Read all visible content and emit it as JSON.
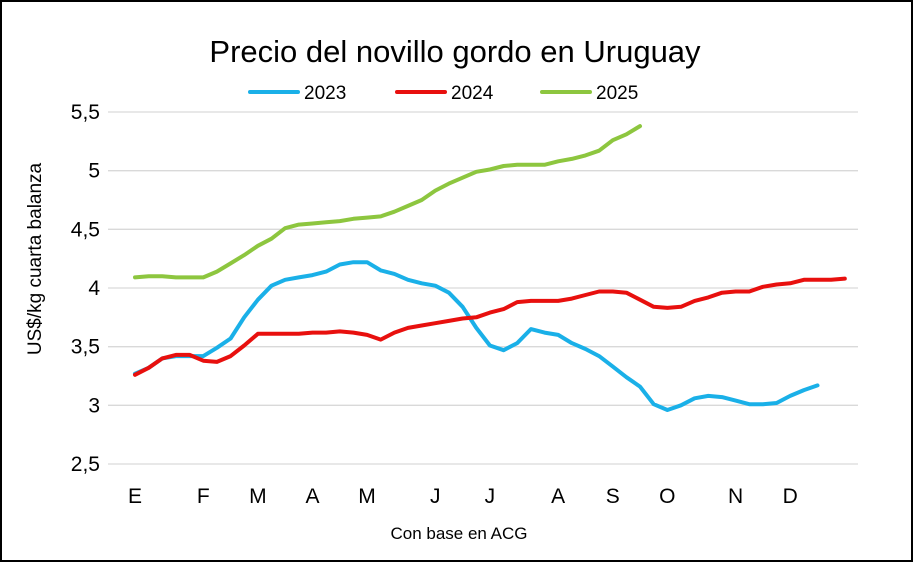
{
  "chart_data": {
    "type": "line",
    "title": "Precio del novillo gordo en Uruguay",
    "xlabel": "Con base en ACG",
    "ylabel": "US$/kg cuarta balanza",
    "ylim": [
      2.5,
      5.5
    ],
    "yticks": [
      {
        "value": 2.5,
        "label": "2,5"
      },
      {
        "value": 3,
        "label": "3"
      },
      {
        "value": 3.5,
        "label": "3,5"
      },
      {
        "value": 4,
        "label": "4"
      },
      {
        "value": 4.5,
        "label": "4,5"
      },
      {
        "value": 5,
        "label": "5"
      },
      {
        "value": 5.5,
        "label": "5,5"
      }
    ],
    "xlim": [
      1,
      53
    ],
    "xticks": [
      {
        "week": 1,
        "label": "E"
      },
      {
        "week": 6,
        "label": "F"
      },
      {
        "week": 10,
        "label": "M"
      },
      {
        "week": 14,
        "label": "A"
      },
      {
        "week": 18,
        "label": "M"
      },
      {
        "week": 23,
        "label": "J"
      },
      {
        "week": 27,
        "label": "J"
      },
      {
        "week": 32,
        "label": "A"
      },
      {
        "week": 36,
        "label": "S"
      },
      {
        "week": 40,
        "label": "O"
      },
      {
        "week": 45,
        "label": "N"
      },
      {
        "week": 49,
        "label": "D"
      }
    ],
    "grid": true,
    "legend_position": "top",
    "series": [
      {
        "name": "2023",
        "color": "#1AB0E8",
        "x": [
          1,
          2,
          3,
          4,
          5,
          6,
          7,
          8,
          9,
          10,
          11,
          12,
          13,
          14,
          15,
          16,
          17,
          18,
          19,
          20,
          21,
          22,
          23,
          24,
          25,
          26,
          27,
          28,
          29,
          30,
          31,
          32,
          33,
          34,
          35,
          36,
          37,
          38,
          39,
          40,
          41,
          42,
          43,
          44,
          45,
          46,
          47,
          48,
          49,
          50,
          51
        ],
        "values": [
          3.27,
          3.32,
          3.4,
          3.42,
          3.42,
          3.42,
          3.49,
          3.57,
          3.75,
          3.9,
          4.02,
          4.07,
          4.09,
          4.11,
          4.14,
          4.2,
          4.22,
          4.22,
          4.15,
          4.12,
          4.07,
          4.04,
          4.02,
          3.96,
          3.84,
          3.66,
          3.51,
          3.47,
          3.53,
          3.65,
          3.62,
          3.6,
          3.53,
          3.48,
          3.42,
          3.33,
          3.24,
          3.16,
          3.01,
          2.96,
          3.0,
          3.06,
          3.08,
          3.07,
          3.04,
          3.01,
          3.01,
          3.02,
          3.08,
          3.13,
          3.17
        ]
      },
      {
        "name": "2024",
        "color": "#E8100E",
        "x": [
          1,
          2,
          3,
          4,
          5,
          6,
          7,
          8,
          9,
          10,
          11,
          12,
          13,
          14,
          15,
          16,
          17,
          18,
          19,
          20,
          21,
          22,
          23,
          24,
          25,
          26,
          27,
          28,
          29,
          30,
          31,
          32,
          33,
          34,
          35,
          36,
          37,
          38,
          39,
          40,
          41,
          42,
          43,
          44,
          45,
          46,
          47,
          48,
          49,
          50,
          51,
          52,
          53
        ],
        "values": [
          3.26,
          3.32,
          3.4,
          3.43,
          3.43,
          3.38,
          3.37,
          3.42,
          3.51,
          3.61,
          3.61,
          3.61,
          3.61,
          3.62,
          3.62,
          3.63,
          3.62,
          3.6,
          3.56,
          3.62,
          3.66,
          3.68,
          3.7,
          3.72,
          3.74,
          3.75,
          3.79,
          3.82,
          3.88,
          3.89,
          3.89,
          3.89,
          3.91,
          3.94,
          3.97,
          3.97,
          3.96,
          3.9,
          3.84,
          3.83,
          3.84,
          3.89,
          3.92,
          3.96,
          3.97,
          3.97,
          4.01,
          4.03,
          4.04,
          4.07,
          4.07,
          4.07,
          4.08
        ]
      },
      {
        "name": "2025",
        "color": "#8DC63F",
        "x": [
          1,
          2,
          3,
          4,
          5,
          6,
          7,
          8,
          9,
          10,
          11,
          12,
          13,
          14,
          15,
          16,
          17,
          18,
          19,
          20,
          21,
          22,
          23,
          24,
          25,
          26,
          27,
          28,
          29,
          30,
          31,
          32,
          33,
          34,
          35,
          36,
          37,
          38
        ],
        "values": [
          4.09,
          4.1,
          4.1,
          4.09,
          4.09,
          4.09,
          4.14,
          4.21,
          4.28,
          4.36,
          4.42,
          4.51,
          4.54,
          4.55,
          4.56,
          4.57,
          4.59,
          4.6,
          4.61,
          4.65,
          4.7,
          4.75,
          4.83,
          4.89,
          4.94,
          4.99,
          5.01,
          5.04,
          5.05,
          5.05,
          5.05,
          5.08,
          5.1,
          5.13,
          5.17,
          5.26,
          5.31,
          5.38
        ]
      }
    ]
  }
}
